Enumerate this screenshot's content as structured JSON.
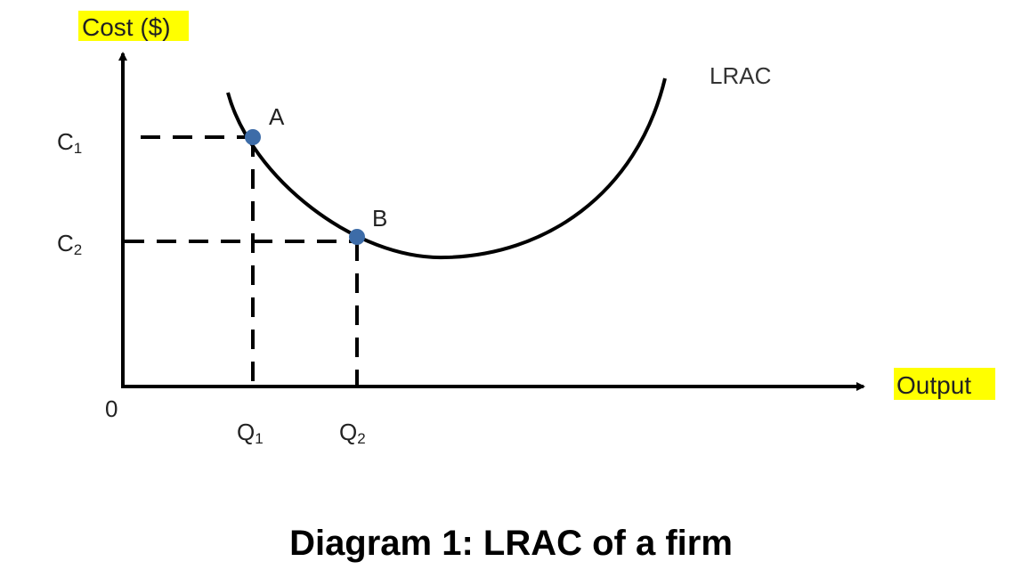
{
  "caption": "Diagram 1: LRAC of a firm",
  "highlight_color": "#ffff00",
  "point_color": "#3d6ca8",
  "axes": {
    "y_label": "Cost ($)",
    "x_label": "Output",
    "origin_label": "0"
  },
  "curve": {
    "label": "LRAC"
  },
  "y_ticks": [
    {
      "base": "C",
      "sub": "1"
    },
    {
      "base": "C",
      "sub": "2"
    }
  ],
  "x_ticks": [
    {
      "base": "Q",
      "sub": "1"
    },
    {
      "base": "Q",
      "sub": "2"
    }
  ],
  "points": [
    {
      "label": "A"
    },
    {
      "label": "B"
    }
  ]
}
